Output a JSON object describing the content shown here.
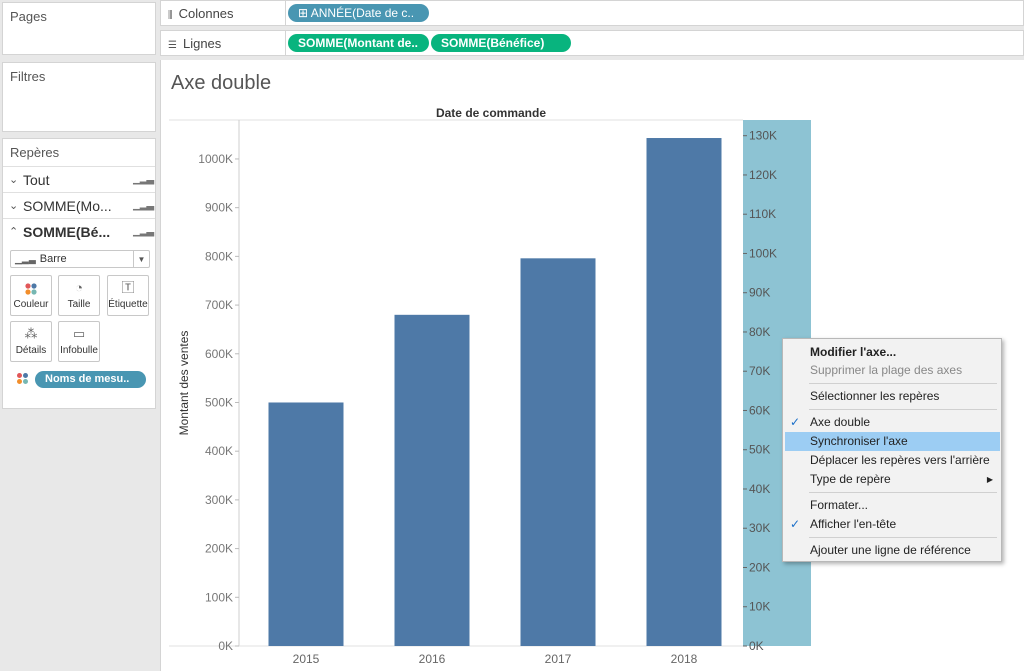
{
  "panels": {
    "pages": "Pages",
    "filtres": "Filtres",
    "reperes": "Repères"
  },
  "marks": {
    "rows": [
      {
        "label": "Tout",
        "expanded": false
      },
      {
        "label": "SOMME(Mo...",
        "expanded": false
      },
      {
        "label": "SOMME(Bé...",
        "expanded": true
      }
    ],
    "mark_type": "Barre",
    "buttons": {
      "couleur": "Couleur",
      "taille": "Taille",
      "etiquette": "Étiquette",
      "details": "Détails",
      "infobulle": "Infobulle"
    },
    "measure_pill": "Noms de mesu.."
  },
  "shelves": {
    "colonnes": {
      "label": "Colonnes",
      "pill": "⊞ ANNÉE(Date de c.."
    },
    "lignes": {
      "label": "Lignes",
      "pills": [
        "SOMME(Montant de..",
        "SOMME(Bénéfice)"
      ]
    }
  },
  "viz": {
    "title": "Axe double",
    "chart_data": {
      "type": "bar",
      "title": "",
      "header": "Date de commande",
      "categories": [
        "2015",
        "2016",
        "2017",
        "2018"
      ],
      "values": [
        500000,
        680000,
        796000,
        1043000
      ],
      "ylabel": "Montant des ventes",
      "ylim": [
        0,
        1080000
      ],
      "yticks": [
        0,
        100000,
        200000,
        300000,
        400000,
        500000,
        600000,
        700000,
        800000,
        900000,
        1000000
      ],
      "ytick_labels": [
        "0K",
        "100K",
        "200K",
        "300K",
        "400K",
        "500K",
        "600K",
        "700K",
        "800K",
        "900K",
        "1000K"
      ],
      "y2lim": [
        0,
        134000
      ],
      "y2ticks": [
        0,
        10000,
        20000,
        30000,
        40000,
        50000,
        60000,
        70000,
        80000,
        90000,
        100000,
        110000,
        120000,
        130000
      ],
      "y2tick_labels": [
        "0K",
        "10K",
        "20K",
        "30K",
        "40K",
        "50K",
        "60K",
        "70K",
        "80K",
        "90K",
        "100K",
        "110K",
        "120K",
        "130K"
      ],
      "bar_color": "#4e79a7",
      "axis_highlight_color": "#8dc3d3",
      "grid": false
    }
  },
  "context_menu": {
    "items": [
      {
        "label": "Modifier l'axe...",
        "bold": true
      },
      {
        "label": "Supprimer la plage des axes",
        "disabled": true
      },
      {
        "label": "Sélectionner les repères"
      },
      {
        "label": "Axe double",
        "checked": true
      },
      {
        "label": "Synchroniser l'axe",
        "highlighted": true
      },
      {
        "label": "Déplacer les repères vers l'arrière"
      },
      {
        "label": "Type de repère",
        "submenu": true
      },
      {
        "label": "Formater..."
      },
      {
        "label": "Afficher l'en-tête",
        "checked": true
      },
      {
        "label": "Ajouter une ligne de référence"
      }
    ]
  }
}
